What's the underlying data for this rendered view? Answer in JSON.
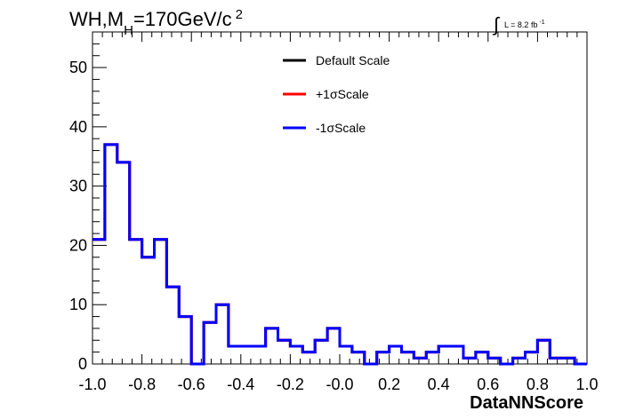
{
  "header": {
    "title_prefix": "WH,M",
    "title_subscript": "H",
    "title_suffix": "=170GeV/c",
    "title_superscript": "2",
    "lumi_integral": "∫",
    "lumi_text": "L = 8.2 fb",
    "lumi_exponent": "-1"
  },
  "chart_data": {
    "type": "line",
    "style": "step-histogram",
    "xlabel": "DataNNScore",
    "ylabel": "",
    "xlim": [
      -1.0,
      1.0
    ],
    "ylim": [
      0,
      56
    ],
    "x_ticks": [
      -1.0,
      -0.8,
      -0.6,
      -0.4,
      -0.2,
      0.0,
      0.2,
      0.4,
      0.6,
      0.8,
      1.0
    ],
    "x_tick_labels": [
      "-1.0",
      "-0.8",
      "-0.6",
      "-0.4",
      "-0.2",
      "-0.0",
      "0.2",
      "0.4",
      "0.6",
      "0.8",
      "1.0"
    ],
    "y_ticks": [
      0,
      10,
      20,
      30,
      40,
      50
    ],
    "y_tick_labels": [
      "0",
      "10",
      "20",
      "30",
      "40",
      "50"
    ],
    "bin_edges": [
      -1.0,
      -0.95,
      -0.9,
      -0.85,
      -0.8,
      -0.75,
      -0.7,
      -0.65,
      -0.6,
      -0.55,
      -0.5,
      -0.45,
      -0.4,
      -0.35,
      -0.3,
      -0.25,
      -0.2,
      -0.15,
      -0.1,
      -0.05,
      0.0,
      0.05,
      0.1,
      0.15,
      0.2,
      0.25,
      0.3,
      0.35,
      0.4,
      0.45,
      0.5,
      0.55,
      0.6,
      0.65,
      0.7,
      0.75,
      0.8,
      0.85,
      0.9,
      0.95,
      1.0
    ],
    "series": [
      {
        "name": "Default Scale",
        "color": "#000000",
        "values": [
          21,
          37,
          34,
          21,
          18,
          21,
          13,
          8,
          0,
          7,
          10,
          3,
          3,
          3,
          6,
          4,
          3,
          2,
          4,
          6,
          3,
          2,
          0,
          2,
          3,
          2,
          1,
          2,
          3,
          3,
          1,
          2,
          1,
          0,
          1,
          2,
          4,
          1,
          1,
          0
        ]
      },
      {
        "name": "+1σScale",
        "color": "#ff0000",
        "values": [
          21,
          37,
          34,
          21,
          18,
          21,
          13,
          8,
          0,
          7,
          10,
          3,
          3,
          3,
          6,
          4,
          3,
          2,
          4,
          6,
          3,
          2,
          0,
          2,
          3,
          2,
          1,
          2,
          3,
          3,
          1,
          2,
          1,
          0,
          1,
          2,
          4,
          1,
          1,
          0
        ]
      },
      {
        "name": "-1σScale",
        "color": "#0000ff",
        "values": [
          21,
          37,
          34,
          21,
          18,
          21,
          13,
          8,
          0,
          7,
          10,
          3,
          3,
          3,
          6,
          4,
          3,
          2,
          4,
          6,
          3,
          2,
          0,
          2,
          3,
          2,
          1,
          2,
          3,
          3,
          1,
          2,
          1,
          0,
          1,
          2,
          4,
          1,
          1,
          0
        ]
      }
    ],
    "legend_position": "top-center",
    "grid": false
  }
}
